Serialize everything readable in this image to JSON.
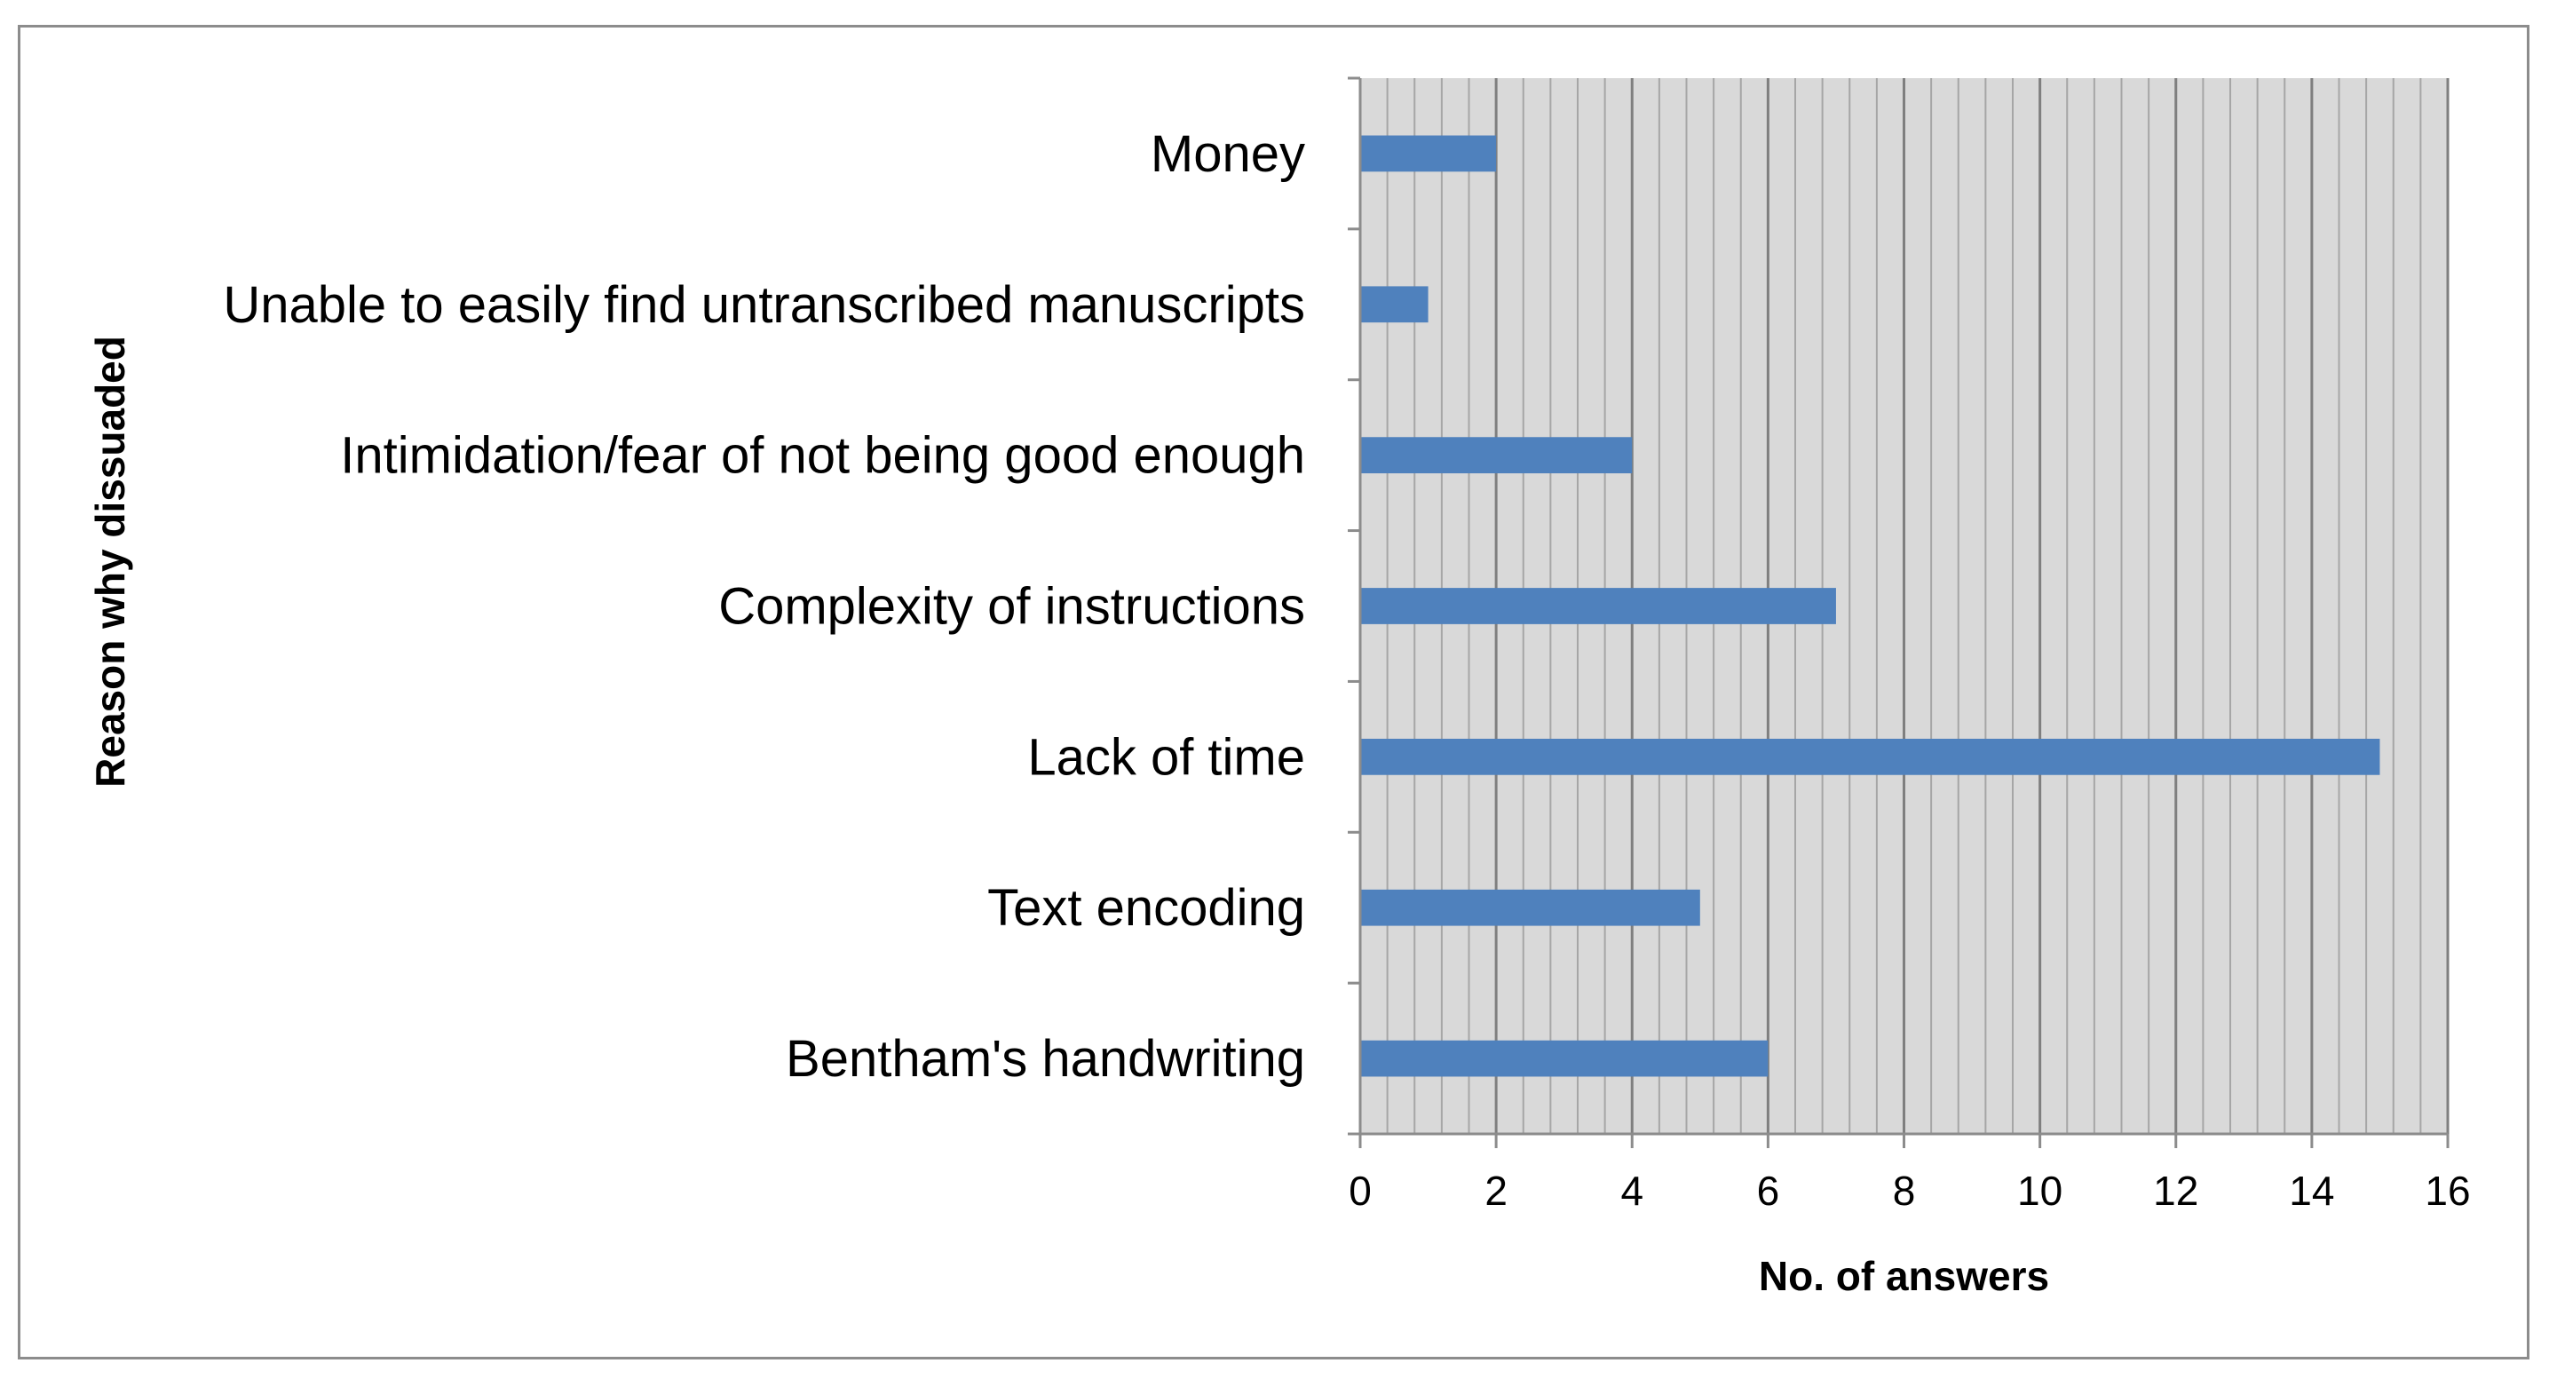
{
  "chart_data": {
    "type": "bar",
    "orientation": "horizontal",
    "categories": [
      "Bentham's handwriting",
      "Text encoding",
      "Lack of time",
      "Complexity of instructions",
      "Intimidation/fear of not being good enough",
      "Unable to easily find untranscribed manuscripts",
      "Money"
    ],
    "values": [
      6,
      5,
      15,
      7,
      4,
      1,
      2
    ],
    "xlabel": "No. of answers",
    "ylabel": "Reason why dissuaded",
    "xlim": [
      0,
      16
    ],
    "x_ticks": [
      "0",
      "2",
      "4",
      "6",
      "8",
      "10",
      "12",
      "14",
      "16"
    ],
    "major_tick_step": 2,
    "minor_tick_step": 0.4,
    "grid": true,
    "legend": "none",
    "colors": {
      "bar": "#4f81bd",
      "plot_background": "#d9d9d9",
      "major_gridline": "#7f7f7f",
      "minor_gridline": "#a6a6a6",
      "frame": "#8c8c8c"
    }
  }
}
